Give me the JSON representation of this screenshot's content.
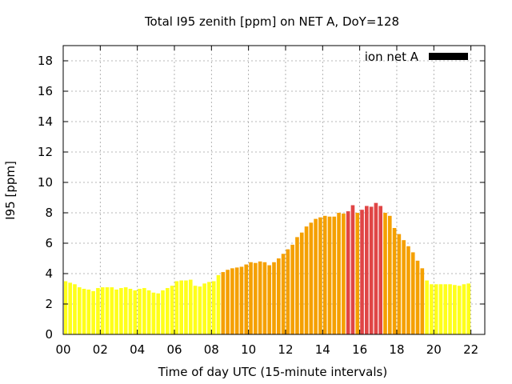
{
  "chart_data": {
    "type": "bar",
    "title": "Total I95 zenith [ppm] on NET A, DoY=128",
    "xlabel": "Time of day UTC (15-minute intervals)",
    "ylabel": "I95 [ppm]",
    "xlim": [
      0,
      22.75
    ],
    "ylim": [
      0,
      19
    ],
    "x_ticks": [
      "00",
      "02",
      "04",
      "06",
      "08",
      "10",
      "12",
      "14",
      "16",
      "18",
      "20",
      "22"
    ],
    "y_ticks": [
      "0",
      "2",
      "4",
      "6",
      "8",
      "10",
      "12",
      "14",
      "16",
      "18"
    ],
    "grid": true,
    "legend": {
      "position": "top-right",
      "entries": [
        {
          "name": "ion net A",
          "color": "#000000"
        }
      ]
    },
    "bin_hours": 0.25,
    "color_scale": [
      {
        "max": 4,
        "color": "#ffff1a"
      },
      {
        "max": 8,
        "color": "#f5a000"
      },
      {
        "max": 100,
        "color": "#e04545"
      }
    ],
    "series": [
      {
        "name": "ion net A",
        "values": [
          3.5,
          3.4,
          3.3,
          3.1,
          3.0,
          2.95,
          2.85,
          3.05,
          3.1,
          3.1,
          3.1,
          2.95,
          3.05,
          3.1,
          3.0,
          2.9,
          3.0,
          3.05,
          2.9,
          2.75,
          2.7,
          2.9,
          3.05,
          3.2,
          3.5,
          3.55,
          3.55,
          3.6,
          3.2,
          3.15,
          3.35,
          3.45,
          3.5,
          3.9,
          4.1,
          4.25,
          4.35,
          4.4,
          4.45,
          4.6,
          4.75,
          4.7,
          4.8,
          4.75,
          4.55,
          4.75,
          5.0,
          5.3,
          5.6,
          5.9,
          6.4,
          6.7,
          7.1,
          7.35,
          7.6,
          7.7,
          7.8,
          7.75,
          7.75,
          8.0,
          7.95,
          8.1,
          8.5,
          8.0,
          8.2,
          8.45,
          8.4,
          8.65,
          8.45,
          8.0,
          7.8,
          7.0,
          6.6,
          6.2,
          5.8,
          5.4,
          4.85,
          4.35,
          3.55,
          3.3,
          3.3,
          3.3,
          3.3,
          3.3,
          3.25,
          3.2,
          3.3,
          3.35
        ]
      }
    ]
  }
}
